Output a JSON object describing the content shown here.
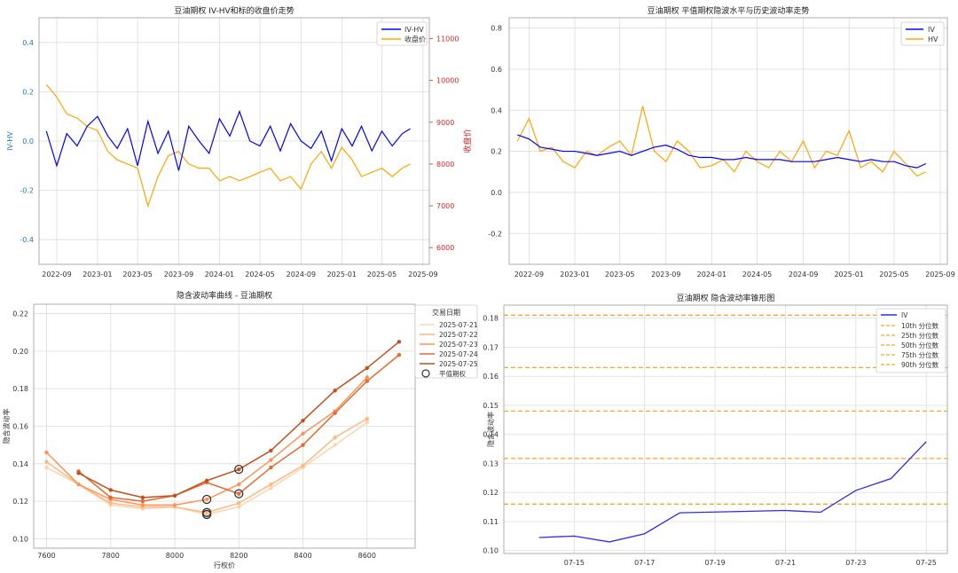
{
  "chart_data": [
    {
      "type": "line",
      "title": "豆油期权 IV-HV和标的收盘价走势",
      "ylabel": "IV-HV",
      "y2label": "收盘价",
      "x_ticks": [
        "2022-09",
        "2023-01",
        "2023-05",
        "2023-09",
        "2024-01",
        "2024-05",
        "2024-09",
        "2025-01",
        "2025-05",
        "2025-09"
      ],
      "y_ticks": [
        -0.4,
        -0.2,
        0.0,
        0.2,
        0.4
      ],
      "y2_ticks": [
        6000,
        7000,
        8000,
        9000,
        10000,
        11000
      ],
      "ylim": [
        -0.5,
        0.5
      ],
      "y2lim": [
        5600,
        11500
      ],
      "legend": "top-right",
      "grid": true,
      "colors": {
        "iv_hv": "#0000ff",
        "close": "#ffa500",
        "left_axis": "#1f77b4",
        "right_axis": "#d62728"
      },
      "series": [
        {
          "name": "IV-HV",
          "axis": "left",
          "x": [
            "2022-08-01",
            "2022-09-01",
            "2022-10-01",
            "2022-11-01",
            "2022-12-01",
            "2023-01-01",
            "2023-02-01",
            "2023-03-01",
            "2023-04-01",
            "2023-05-01",
            "2023-06-01",
            "2023-07-01",
            "2023-08-01",
            "2023-09-01",
            "2023-10-01",
            "2023-11-01",
            "2023-12-01",
            "2024-01-01",
            "2024-02-01",
            "2024-03-01",
            "2024-04-01",
            "2024-05-01",
            "2024-06-01",
            "2024-07-01",
            "2024-08-01",
            "2024-09-01",
            "2024-10-01",
            "2024-11-01",
            "2024-12-01",
            "2025-01-01",
            "2025-02-01",
            "2025-03-01",
            "2025-04-01",
            "2025-05-01",
            "2025-06-01",
            "2025-07-01",
            "2025-07-25"
          ],
          "values": [
            0.04,
            -0.1,
            0.03,
            -0.02,
            0.06,
            0.1,
            0.02,
            -0.03,
            0.05,
            -0.1,
            0.08,
            -0.05,
            0.04,
            -0.12,
            0.06,
            0.0,
            -0.05,
            0.09,
            0.02,
            0.12,
            0.0,
            -0.02,
            0.06,
            -0.04,
            0.07,
            0.0,
            -0.03,
            0.04,
            -0.08,
            0.05,
            -0.02,
            0.06,
            -0.04,
            0.04,
            -0.02,
            0.03,
            0.05
          ]
        },
        {
          "name": "收盘价",
          "axis": "right",
          "x": [
            "2022-08-01",
            "2022-09-01",
            "2022-10-01",
            "2022-11-01",
            "2022-12-01",
            "2023-01-01",
            "2023-02-01",
            "2023-03-01",
            "2023-04-01",
            "2023-05-01",
            "2023-06-01",
            "2023-07-01",
            "2023-08-01",
            "2023-09-01",
            "2023-10-01",
            "2023-11-01",
            "2023-12-01",
            "2024-01-01",
            "2024-02-01",
            "2024-03-01",
            "2024-04-01",
            "2024-05-01",
            "2024-06-01",
            "2024-07-01",
            "2024-08-01",
            "2024-09-01",
            "2024-10-01",
            "2024-11-01",
            "2024-12-01",
            "2025-01-01",
            "2025-02-01",
            "2025-03-01",
            "2025-04-01",
            "2025-05-01",
            "2025-06-01",
            "2025-07-01",
            "2025-07-25"
          ],
          "values": [
            9900,
            9600,
            9200,
            9100,
            8900,
            8800,
            8300,
            8100,
            8000,
            7900,
            7000,
            7700,
            8200,
            8300,
            8000,
            7900,
            7900,
            7600,
            7700,
            7600,
            7700,
            7800,
            7900,
            7600,
            7700,
            7400,
            8000,
            8300,
            7900,
            8400,
            8100,
            7700,
            7800,
            7900,
            7700,
            7900,
            8000
          ]
        }
      ]
    },
    {
      "type": "line",
      "title": "豆油期权 平值期权隐波水平与历史波动率走势",
      "x_ticks": [
        "2022-09",
        "2023-01",
        "2023-05",
        "2023-09",
        "2024-01",
        "2024-05",
        "2024-09",
        "2025-01",
        "2025-05",
        "2025-09"
      ],
      "y_ticks": [
        -0.2,
        0.0,
        0.2,
        0.4,
        0.6,
        0.8
      ],
      "ylim": [
        -0.35,
        0.85
      ],
      "legend": "top-right",
      "grid": true,
      "colors": {
        "IV": "#0000ff",
        "HV": "#ffa500"
      },
      "series": [
        {
          "name": "IV",
          "x": [
            "2022-08-01",
            "2022-09-01",
            "2022-10-01",
            "2022-11-01",
            "2022-12-01",
            "2023-01-01",
            "2023-02-01",
            "2023-03-01",
            "2023-04-01",
            "2023-05-01",
            "2023-06-01",
            "2023-07-01",
            "2023-08-01",
            "2023-09-01",
            "2023-10-01",
            "2023-11-01",
            "2023-12-01",
            "2024-01-01",
            "2024-02-01",
            "2024-03-01",
            "2024-04-01",
            "2024-05-01",
            "2024-06-01",
            "2024-07-01",
            "2024-08-01",
            "2024-09-01",
            "2024-10-01",
            "2024-11-01",
            "2024-12-01",
            "2025-01-01",
            "2025-02-01",
            "2025-03-01",
            "2025-04-01",
            "2025-05-01",
            "2025-06-01",
            "2025-07-01",
            "2025-07-25"
          ],
          "values": [
            0.28,
            0.26,
            0.22,
            0.21,
            0.2,
            0.2,
            0.19,
            0.18,
            0.19,
            0.2,
            0.18,
            0.2,
            0.22,
            0.23,
            0.21,
            0.18,
            0.17,
            0.17,
            0.16,
            0.16,
            0.17,
            0.16,
            0.16,
            0.16,
            0.15,
            0.15,
            0.15,
            0.16,
            0.17,
            0.16,
            0.15,
            0.16,
            0.15,
            0.15,
            0.13,
            0.12,
            0.14
          ]
        },
        {
          "name": "HV",
          "x": [
            "2022-08-01",
            "2022-09-01",
            "2022-10-01",
            "2022-11-01",
            "2022-12-01",
            "2023-01-01",
            "2023-02-01",
            "2023-03-01",
            "2023-04-01",
            "2023-05-01",
            "2023-06-01",
            "2023-07-01",
            "2023-08-01",
            "2023-09-01",
            "2023-10-01",
            "2023-11-01",
            "2023-12-01",
            "2024-01-01",
            "2024-02-01",
            "2024-03-01",
            "2024-04-01",
            "2024-05-01",
            "2024-06-01",
            "2024-07-01",
            "2024-08-01",
            "2024-09-01",
            "2024-10-01",
            "2024-11-01",
            "2024-12-01",
            "2025-01-01",
            "2025-02-01",
            "2025-03-01",
            "2025-04-01",
            "2025-05-01",
            "2025-06-01",
            "2025-07-01",
            "2025-07-25"
          ],
          "values": [
            0.25,
            0.36,
            0.2,
            0.22,
            0.15,
            0.12,
            0.2,
            0.18,
            0.22,
            0.25,
            0.18,
            0.42,
            0.2,
            0.15,
            0.25,
            0.2,
            0.12,
            0.13,
            0.16,
            0.1,
            0.2,
            0.15,
            0.12,
            0.2,
            0.15,
            0.25,
            0.12,
            0.2,
            0.18,
            0.3,
            0.12,
            0.15,
            0.1,
            0.2,
            0.14,
            0.08,
            0.1
          ]
        }
      ]
    },
    {
      "type": "line",
      "title": "隐含波动率曲线 - 豆油期权",
      "xlabel": "行权价",
      "ylabel": "隐含波动率",
      "x_ticks": [
        7600,
        7800,
        8000,
        8200,
        8400,
        8600
      ],
      "y_ticks": [
        0.1,
        0.12,
        0.14,
        0.16,
        0.18,
        0.2,
        0.22
      ],
      "xlim": [
        7560,
        8750
      ],
      "ylim": [
        0.095,
        0.225
      ],
      "legend_title": "交易日期",
      "legend": "top-right",
      "grid": true,
      "atm_label": "平值期权",
      "series": [
        {
          "name": "2025-07-21",
          "color": "#fdd5ad",
          "x": [
            7600,
            7700,
            7800,
            7900,
            8000,
            8100,
            8200,
            8300,
            8400,
            8500,
            8600
          ],
          "values": [
            0.138,
            0.129,
            0.118,
            0.116,
            0.117,
            0.113,
            0.117,
            0.127,
            0.138,
            0.15,
            0.162
          ]
        },
        {
          "name": "2025-07-22",
          "color": "#fdb883",
          "x": [
            7600,
            7700,
            7800,
            7900,
            8000,
            8100,
            8200,
            8300,
            8400,
            8500,
            8600
          ],
          "values": [
            0.141,
            0.129,
            0.119,
            0.117,
            0.117,
            0.114,
            0.119,
            0.129,
            0.139,
            0.154,
            0.164
          ]
        },
        {
          "name": "2025-07-23",
          "color": "#f8955a",
          "x": [
            7600,
            7700,
            7800,
            7900,
            8000,
            8100,
            8200,
            8300,
            8400,
            8500,
            8600
          ],
          "values": [
            0.146,
            0.129,
            0.121,
            0.118,
            0.118,
            0.121,
            0.129,
            0.142,
            0.156,
            0.168,
            0.186
          ]
        },
        {
          "name": "2025-07-24",
          "color": "#e8692f",
          "x": [
            7700,
            7800,
            7900,
            8000,
            8100,
            8200,
            8300,
            8400,
            8500,
            8600,
            8700
          ],
          "values": [
            0.136,
            0.122,
            0.12,
            0.123,
            0.13,
            0.124,
            0.138,
            0.15,
            0.167,
            0.184,
            0.198
          ]
        },
        {
          "name": "2025-07-25",
          "color": "#c2501e",
          "x": [
            7700,
            7800,
            7900,
            8000,
            8100,
            8200,
            8300,
            8400,
            8500,
            8600,
            8700
          ],
          "values": [
            0.135,
            0.126,
            0.122,
            0.123,
            0.131,
            0.137,
            0.147,
            0.163,
            0.179,
            0.191,
            0.205
          ]
        }
      ],
      "atm_points": [
        {
          "x": 8100,
          "y": 0.113
        },
        {
          "x": 8100,
          "y": 0.114
        },
        {
          "x": 8100,
          "y": 0.121
        },
        {
          "x": 8200,
          "y": 0.124
        },
        {
          "x": 8200,
          "y": 0.137
        }
      ]
    },
    {
      "type": "line",
      "title": "豆油期权 隐含波动率锥形图",
      "ylabel": "隐含波动率",
      "x_ticks": [
        "07-15",
        "07-17",
        "07-19",
        "07-21",
        "07-23",
        "07-25"
      ],
      "y_ticks": [
        0.1,
        0.11,
        0.12,
        0.13,
        0.14,
        0.15,
        0.16,
        0.17,
        0.18
      ],
      "ylim": [
        0.099,
        0.1845
      ],
      "legend": "top-right",
      "grid": true,
      "colors": {
        "IV": "#2b2bf0",
        "percentiles": "#f5a623"
      },
      "series": [
        {
          "name": "IV",
          "x": [
            "2025-07-14",
            "2025-07-15",
            "2025-07-16",
            "2025-07-17",
            "2025-07-18",
            "2025-07-21",
            "2025-07-22",
            "2025-07-23",
            "2025-07-24",
            "2025-07-25"
          ],
          "values": [
            0.1045,
            0.105,
            0.103,
            0.1058,
            0.113,
            0.1138,
            0.1132,
            0.1207,
            0.1248,
            0.1375
          ]
        }
      ],
      "percentiles": [
        {
          "name": "10th 分位数",
          "value": 0.116
        },
        {
          "name": "25th 分位数",
          "value": 0.1317
        },
        {
          "name": "50th 分位数",
          "value": 0.148
        },
        {
          "name": "75th 分位数",
          "value": 0.163
        },
        {
          "name": "90th 分位数",
          "value": 0.181
        }
      ]
    }
  ]
}
